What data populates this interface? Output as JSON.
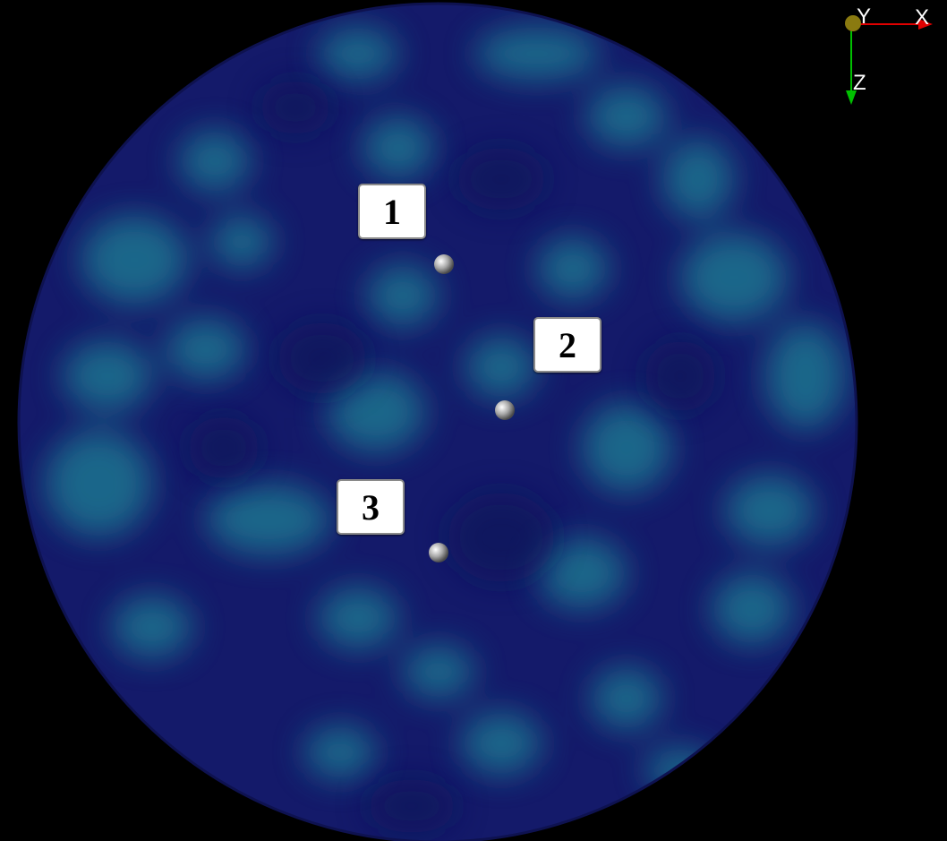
{
  "markers": [
    {
      "label": "1"
    },
    {
      "label": "2"
    },
    {
      "label": "3"
    }
  ],
  "axes": {
    "x_label": "X",
    "y_label": "Y",
    "z_label": "Z",
    "x_color": "#e00000",
    "y_color": "#b0a020",
    "z_color": "#00c000"
  },
  "colors": {
    "background": "#000000",
    "disk_base": "#141a6a",
    "disk_highlight": "#1e7f9a"
  }
}
